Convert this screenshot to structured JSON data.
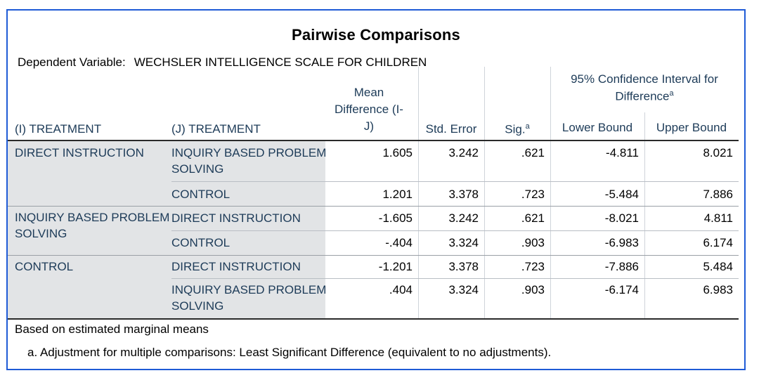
{
  "title": "Pairwise Comparisons",
  "dependent_variable": {
    "label": "Dependent Variable:",
    "value": "WECHSLER INTELLIGENCE SCALE FOR CHILDREN"
  },
  "headers": {
    "i_treatment": "(I) TREATMENT",
    "j_treatment": "(J) TREATMENT",
    "mean_diff_line1": "Mean",
    "mean_diff_line2": "Difference (I-",
    "mean_diff_line3": "J)",
    "std_error": "Std. Error",
    "sig": "Sig.",
    "sig_sup": "a",
    "ci_line1": "95% Confidence Interval for",
    "ci_line2": "Difference",
    "ci_sup": "a",
    "lower": "Lower Bound",
    "upper": "Upper Bound"
  },
  "groups": [
    {
      "i": "DIRECT INSTRUCTION",
      "i_l1": "DIRECT INSTRUCTION",
      "i_l2": ""
    },
    {
      "i": "INQUIRY BASED PROBLEM SOLVING",
      "i_l1": "INQUIRY BASED PROBLEM",
      "i_l2": "SOLVING"
    },
    {
      "i": "CONTROL",
      "i_l1": "CONTROL",
      "i_l2": ""
    }
  ],
  "rows": [
    {
      "j_l1": "INQUIRY BASED PROBLEM",
      "j_l2": "SOLVING",
      "mean": "1.605",
      "se": "3.242",
      "sig": ".621",
      "lower": "-4.811",
      "upper": "8.021"
    },
    {
      "j_l1": "CONTROL",
      "j_l2": "",
      "mean": "1.201",
      "se": "3.378",
      "sig": ".723",
      "lower": "-5.484",
      "upper": "7.886"
    },
    {
      "j_l1": "DIRECT INSTRUCTION",
      "j_l2": "",
      "mean": "-1.605",
      "se": "3.242",
      "sig": ".621",
      "lower": "-8.021",
      "upper": "4.811"
    },
    {
      "j_l1": "CONTROL",
      "j_l2": "",
      "mean": "-.404",
      "se": "3.324",
      "sig": ".903",
      "lower": "-6.983",
      "upper": "6.174"
    },
    {
      "j_l1": "DIRECT INSTRUCTION",
      "j_l2": "",
      "mean": "-1.201",
      "se": "3.378",
      "sig": ".723",
      "lower": "-7.886",
      "upper": "5.484"
    },
    {
      "j_l1": "INQUIRY BASED PROBLEM",
      "j_l2": "SOLVING",
      "mean": ".404",
      "se": "3.324",
      "sig": ".903",
      "lower": "-6.174",
      "upper": "6.983"
    }
  ],
  "footnotes": {
    "based_on": "Based on estimated marginal means",
    "note_a": "a. Adjustment for multiple comparisons: Least Significant Difference (equivalent to no adjustments)."
  }
}
